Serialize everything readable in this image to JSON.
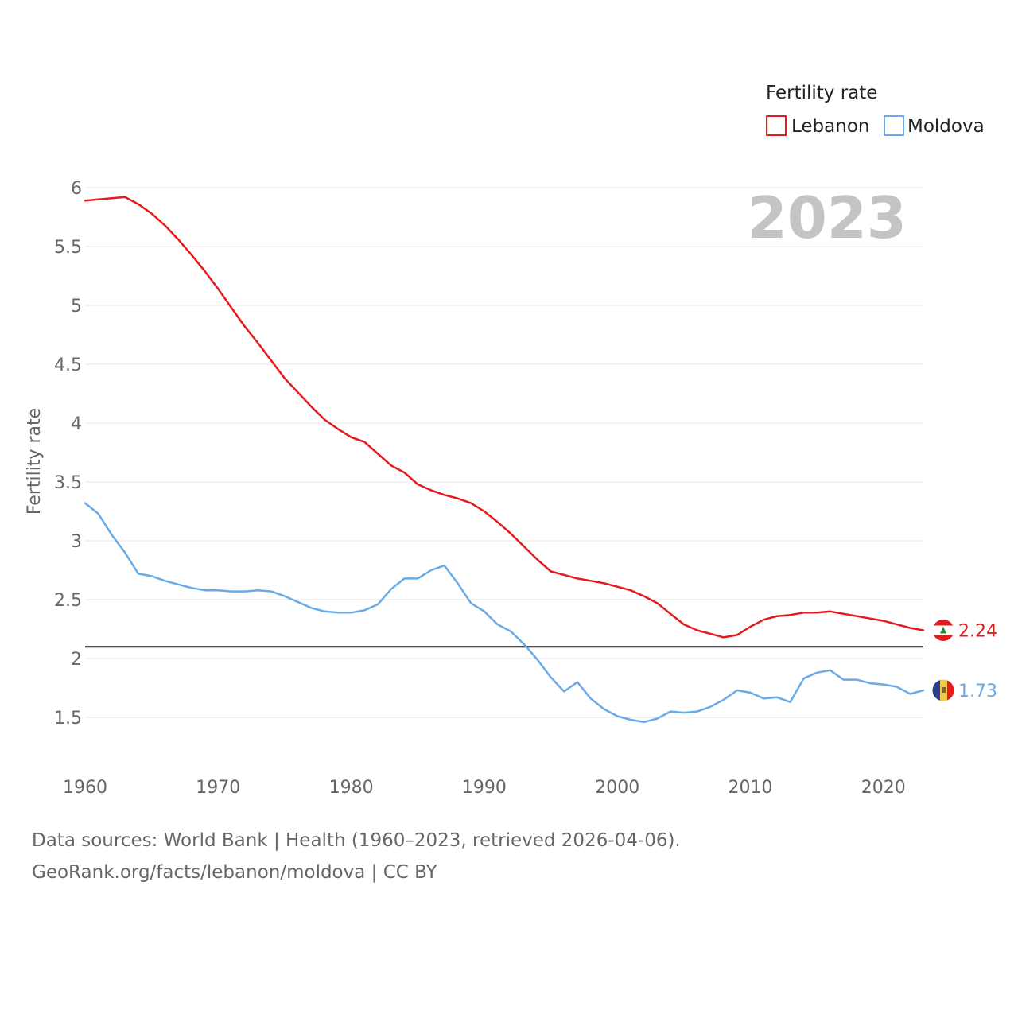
{
  "chart_data": {
    "type": "line",
    "title": "",
    "ylabel": "Fertility rate",
    "xlabel": "",
    "ylim": [
      1.0,
      6.1
    ],
    "xlim": [
      1960,
      2023
    ],
    "year_display": "2023",
    "y_ticks": [
      1.5,
      2,
      2.5,
      3,
      3.5,
      4,
      4.5,
      5,
      5.5,
      6
    ],
    "y_tick_labels": [
      "1.5",
      "2",
      "2.5",
      "3",
      "3.5",
      "4",
      "4.5",
      "5",
      "5.5",
      "6"
    ],
    "x_ticks": [
      1960,
      1970,
      1980,
      1990,
      2000,
      2010,
      2020
    ],
    "x_tick_labels": [
      "1960",
      "1970",
      "1980",
      "1990",
      "2000",
      "2010",
      "2020"
    ],
    "reference_line": 2.1,
    "legend": {
      "title": "Fertility rate",
      "placement": "top-right"
    },
    "x": [
      1960,
      1961,
      1962,
      1963,
      1964,
      1965,
      1966,
      1967,
      1968,
      1969,
      1970,
      1971,
      1972,
      1973,
      1974,
      1975,
      1976,
      1977,
      1978,
      1979,
      1980,
      1981,
      1982,
      1983,
      1984,
      1985,
      1986,
      1987,
      1988,
      1989,
      1990,
      1991,
      1992,
      1993,
      1994,
      1995,
      1996,
      1997,
      1998,
      1999,
      2000,
      2001,
      2002,
      2003,
      2004,
      2005,
      2006,
      2007,
      2008,
      2009,
      2010,
      2011,
      2012,
      2013,
      2014,
      2015,
      2016,
      2017,
      2018,
      2019,
      2020,
      2021,
      2022,
      2023
    ],
    "series": [
      {
        "name": "Lebanon",
        "color": "#e41a1c",
        "end_label": "2.24",
        "flag": "lebanon-flag",
        "values": [
          5.89,
          5.9,
          5.91,
          5.92,
          5.86,
          5.78,
          5.68,
          5.56,
          5.43,
          5.29,
          5.14,
          4.98,
          4.82,
          4.68,
          4.53,
          4.38,
          4.26,
          4.14,
          4.03,
          3.95,
          3.88,
          3.84,
          3.74,
          3.64,
          3.58,
          3.48,
          3.43,
          3.39,
          3.36,
          3.32,
          3.25,
          3.16,
          3.06,
          2.95,
          2.84,
          2.74,
          2.71,
          2.68,
          2.66,
          2.64,
          2.61,
          2.58,
          2.53,
          2.47,
          2.38,
          2.29,
          2.24,
          2.21,
          2.18,
          2.2,
          2.27,
          2.33,
          2.36,
          2.37,
          2.39,
          2.39,
          2.4,
          2.38,
          2.36,
          2.34,
          2.32,
          2.29,
          2.26,
          2.24
        ]
      },
      {
        "name": "Moldova",
        "color": "#6aaae8",
        "end_label": "1.73",
        "flag": "moldova-flag",
        "values": [
          3.32,
          3.23,
          3.05,
          2.9,
          2.72,
          2.7,
          2.66,
          2.63,
          2.6,
          2.58,
          2.58,
          2.57,
          2.57,
          2.58,
          2.57,
          2.53,
          2.48,
          2.43,
          2.4,
          2.39,
          2.39,
          2.41,
          2.46,
          2.59,
          2.68,
          2.68,
          2.75,
          2.79,
          2.64,
          2.47,
          2.4,
          2.29,
          2.23,
          2.12,
          1.99,
          1.84,
          1.72,
          1.8,
          1.66,
          1.57,
          1.51,
          1.48,
          1.46,
          1.49,
          1.55,
          1.54,
          1.55,
          1.59,
          1.65,
          1.73,
          1.71,
          1.66,
          1.67,
          1.63,
          1.83,
          1.88,
          1.9,
          1.82,
          1.82,
          1.79,
          1.78,
          1.76,
          1.7,
          1.73
        ]
      }
    ]
  },
  "footer": {
    "line1": "Data sources: World Bank | Health (1960–2023, retrieved 2026-04-06).",
    "line2": "GeoRank.org/facts/lebanon/moldova | CC BY"
  }
}
